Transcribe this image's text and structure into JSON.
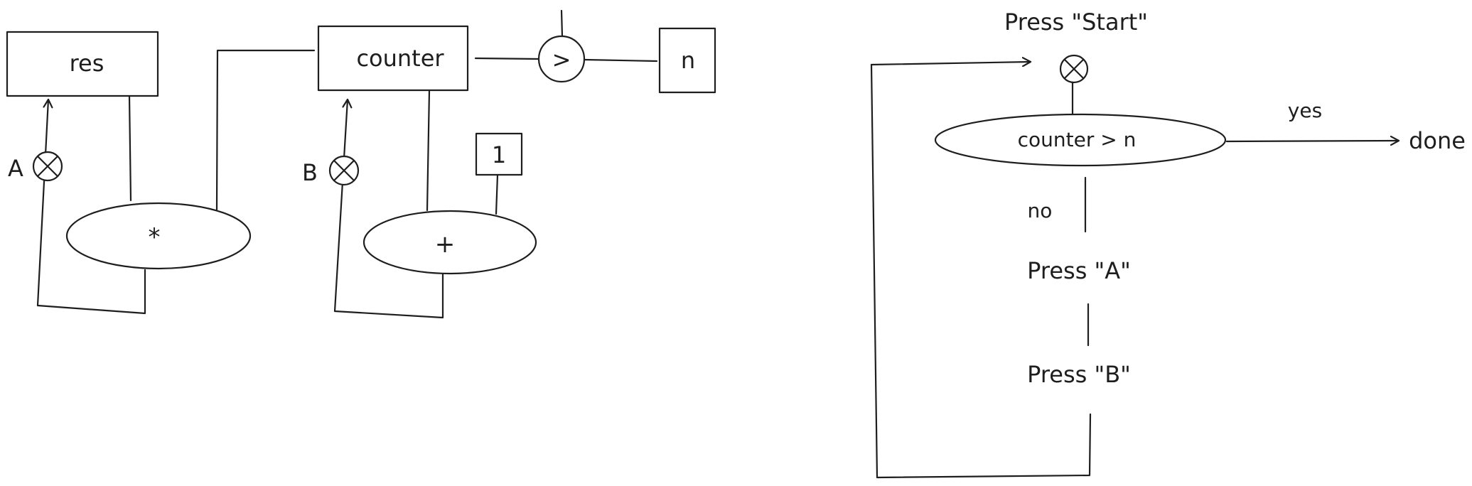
{
  "datapath": {
    "register_res": "res",
    "register_counter": "counter",
    "register_n": "n",
    "constant_one": "1",
    "comparator_op": ">",
    "multiply_op": "*",
    "add_op": "+",
    "button_a": "A",
    "button_b": "B"
  },
  "flowchart": {
    "start_step": "Press \"Start\"",
    "condition": "counter > n",
    "yes_label": "yes",
    "no_label": "no",
    "done_label": "done",
    "step_a": "Press \"A\"",
    "step_b": "Press \"B\""
  }
}
